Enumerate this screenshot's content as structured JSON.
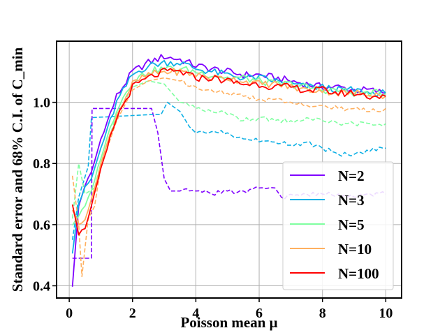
{
  "chart_data": {
    "type": "line",
    "xlabel": "Poisson mean μ",
    "ylabel": "Standard error and 68% C.I. of C_min",
    "xlim": [
      -0.4,
      10.5
    ],
    "ylim": [
      0.36,
      1.2
    ],
    "xticks": [
      0,
      2,
      4,
      6,
      8,
      10
    ],
    "xtick_labels": [
      "0",
      "2",
      "4",
      "6",
      "8",
      "10"
    ],
    "yticks": [
      0.4,
      0.6,
      0.8,
      1.0
    ],
    "ytick_labels": [
      "0.4",
      "0.6",
      "0.8",
      "1.0"
    ],
    "grid": true,
    "legend_position": "lower-right",
    "x": [
      0.1,
      0.3,
      0.5,
      0.7,
      1.0,
      1.5,
      2.0,
      2.5,
      3.0,
      3.5,
      4.0,
      4.5,
      5.0,
      5.5,
      6.0,
      6.5,
      7.0,
      7.5,
      8.0,
      8.5,
      9.0,
      9.5,
      10.0
    ],
    "series": [
      {
        "name": "N=2",
        "color": "#7f00ff",
        "style": "solid",
        "values": [
          0.4,
          0.66,
          0.73,
          0.77,
          0.88,
          1.02,
          1.1,
          1.13,
          1.15,
          1.14,
          1.12,
          1.11,
          1.1,
          1.09,
          1.09,
          1.08,
          1.07,
          1.06,
          1.05,
          1.05,
          1.04,
          1.04,
          1.03
        ]
      },
      {
        "name": "N=3",
        "color": "#0fb0e5",
        "style": "solid",
        "values": [
          0.51,
          0.67,
          0.72,
          0.75,
          0.85,
          1.0,
          1.09,
          1.12,
          1.13,
          1.13,
          1.11,
          1.1,
          1.09,
          1.08,
          1.08,
          1.07,
          1.06,
          1.05,
          1.05,
          1.04,
          1.04,
          1.03,
          1.03
        ]
      },
      {
        "name": "N=5",
        "color": "#7fffa0",
        "style": "solid",
        "values": [
          0.6,
          0.63,
          0.66,
          0.71,
          0.82,
          0.98,
          1.07,
          1.1,
          1.11,
          1.11,
          1.1,
          1.09,
          1.08,
          1.08,
          1.07,
          1.06,
          1.06,
          1.05,
          1.04,
          1.04,
          1.03,
          1.03,
          1.03
        ]
      },
      {
        "name": "N=10",
        "color": "#ffb05f",
        "style": "solid",
        "values": [
          0.65,
          0.6,
          0.62,
          0.68,
          0.8,
          0.96,
          1.06,
          1.09,
          1.1,
          1.1,
          1.09,
          1.08,
          1.08,
          1.07,
          1.06,
          1.06,
          1.05,
          1.04,
          1.04,
          1.03,
          1.03,
          1.03,
          1.02
        ]
      },
      {
        "name": "N=100",
        "color": "#ff0000",
        "style": "solid",
        "values": [
          0.67,
          0.57,
          0.59,
          0.66,
          0.78,
          0.95,
          1.05,
          1.08,
          1.1,
          1.1,
          1.08,
          1.08,
          1.07,
          1.06,
          1.06,
          1.05,
          1.05,
          1.04,
          1.04,
          1.03,
          1.03,
          1.02,
          1.02
        ]
      }
    ],
    "ci_series": [
      {
        "name": "N=2 C.I.",
        "color": "#7f00ff",
        "style": "dashed",
        "points": [
          [
            0.1,
            0.49
          ],
          [
            0.7,
            0.49
          ],
          [
            0.72,
            0.98
          ],
          [
            2.6,
            0.98
          ],
          [
            2.8,
            0.9
          ],
          [
            3.0,
            0.75
          ],
          [
            3.2,
            0.71
          ],
          [
            4.0,
            0.71
          ],
          [
            4.5,
            0.7
          ],
          [
            5.0,
            0.71
          ],
          [
            5.5,
            0.71
          ],
          [
            6.0,
            0.72
          ],
          [
            6.5,
            0.72
          ],
          [
            6.7,
            0.69
          ],
          [
            7.5,
            0.7
          ],
          [
            8.0,
            0.7
          ],
          [
            8.5,
            0.7
          ],
          [
            9.0,
            0.69
          ],
          [
            9.5,
            0.7
          ],
          [
            10.0,
            0.7
          ]
        ]
      },
      {
        "name": "N=3 C.I.",
        "color": "#0fb0e5",
        "style": "dashed",
        "points": [
          [
            0.1,
            0.55
          ],
          [
            0.3,
            0.69
          ],
          [
            0.6,
            0.79
          ],
          [
            0.7,
            0.95
          ],
          [
            2.6,
            0.96
          ],
          [
            2.9,
            0.96
          ],
          [
            3.1,
            1.0
          ],
          [
            3.5,
            0.97
          ],
          [
            3.8,
            0.92
          ],
          [
            4.0,
            0.9
          ],
          [
            5.0,
            0.9
          ],
          [
            5.6,
            0.88
          ],
          [
            6.5,
            0.87
          ],
          [
            7.0,
            0.86
          ],
          [
            7.5,
            0.87
          ],
          [
            8.0,
            0.85
          ],
          [
            8.5,
            0.83
          ],
          [
            9.0,
            0.83
          ],
          [
            9.5,
            0.84
          ],
          [
            10.0,
            0.85
          ]
        ]
      },
      {
        "name": "N=5 C.I.",
        "color": "#7fffa0",
        "style": "dashed",
        "points": [
          [
            0.1,
            0.62
          ],
          [
            0.3,
            0.8
          ],
          [
            0.5,
            0.7
          ],
          [
            0.8,
            0.72
          ],
          [
            1.0,
            0.8
          ],
          [
            1.5,
            0.96
          ],
          [
            2.0,
            1.05
          ],
          [
            2.5,
            1.07
          ],
          [
            3.0,
            1.06
          ],
          [
            3.5,
            1.0
          ],
          [
            4.0,
            0.98
          ],
          [
            4.5,
            0.97
          ],
          [
            5.0,
            0.96
          ],
          [
            5.5,
            0.94
          ],
          [
            6.0,
            0.95
          ],
          [
            6.5,
            0.94
          ],
          [
            7.0,
            0.94
          ],
          [
            7.5,
            0.95
          ],
          [
            8.0,
            0.94
          ],
          [
            8.5,
            0.93
          ],
          [
            9.0,
            0.93
          ],
          [
            9.5,
            0.93
          ],
          [
            10.0,
            0.93
          ]
        ]
      },
      {
        "name": "N=10 C.I.",
        "color": "#ffb05f",
        "style": "dashed",
        "points": [
          [
            0.1,
            0.76
          ],
          [
            0.3,
            0.6
          ],
          [
            0.4,
            0.43
          ],
          [
            0.6,
            0.62
          ],
          [
            0.8,
            0.66
          ],
          [
            1.0,
            0.79
          ],
          [
            1.5,
            0.94
          ],
          [
            2.0,
            1.04
          ],
          [
            2.5,
            1.07
          ],
          [
            3.0,
            1.08
          ],
          [
            3.5,
            1.07
          ],
          [
            4.0,
            1.05
          ],
          [
            4.5,
            1.04
          ],
          [
            5.0,
            1.03
          ],
          [
            5.5,
            1.02
          ],
          [
            6.0,
            1.01
          ],
          [
            6.5,
            1.01
          ],
          [
            7.0,
            1.0
          ],
          [
            7.5,
            0.99
          ],
          [
            8.0,
            0.99
          ],
          [
            8.5,
            0.98
          ],
          [
            9.0,
            0.98
          ],
          [
            9.5,
            0.97
          ],
          [
            10.0,
            0.98
          ]
        ]
      }
    ]
  }
}
